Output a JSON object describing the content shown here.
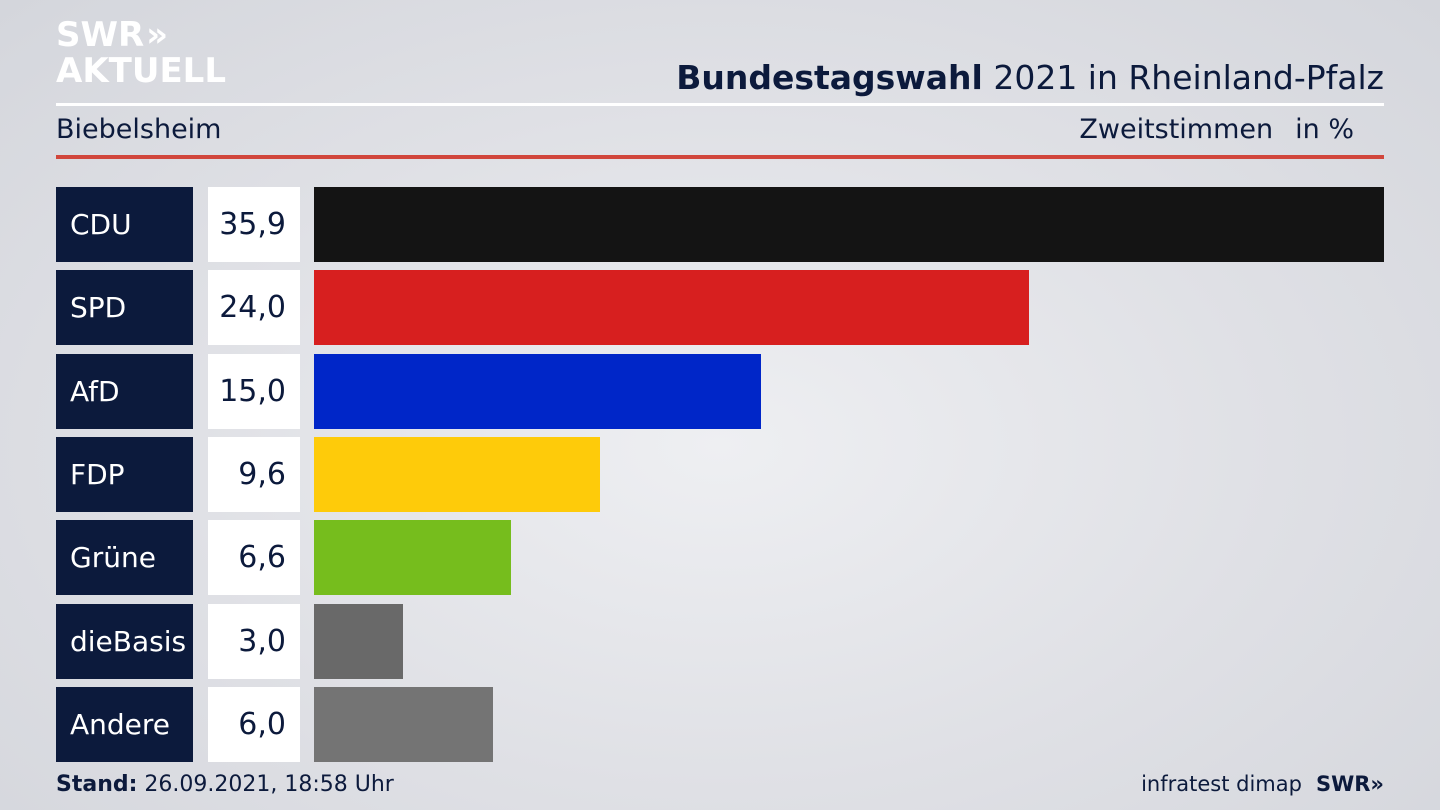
{
  "logo": {
    "line1": "SWR",
    "chevrons": "»",
    "line2": "AKTUELL"
  },
  "header": {
    "title_bold": "Bundestagswahl",
    "title_rest": " 2021 in Rheinland-Pfalz",
    "location": "Biebelsheim",
    "measure": "Zweitstimmen",
    "unit": "in %"
  },
  "chart_data": {
    "type": "bar",
    "orientation": "horizontal",
    "categories": [
      "CDU",
      "SPD",
      "AfD",
      "FDP",
      "Grüne",
      "dieBasis",
      "Andere"
    ],
    "values": [
      35.9,
      24.0,
      15.0,
      9.6,
      6.6,
      3.0,
      6.0
    ],
    "value_labels": [
      "35,9",
      "24,0",
      "15,0",
      "9,6",
      "6,6",
      "3,0",
      "6,0"
    ],
    "colors": [
      "#141414",
      "#d71f1f",
      "#0026c8",
      "#fecb0a",
      "#76bd1d",
      "#696969",
      "#747474"
    ],
    "xlim": [
      0,
      35.9
    ],
    "grid": false
  },
  "footer": {
    "stand_label": "Stand:",
    "stand_value": " 26.09.2021, 18:58 Uhr",
    "source": "infratest dimap",
    "brand": "SWR»"
  }
}
